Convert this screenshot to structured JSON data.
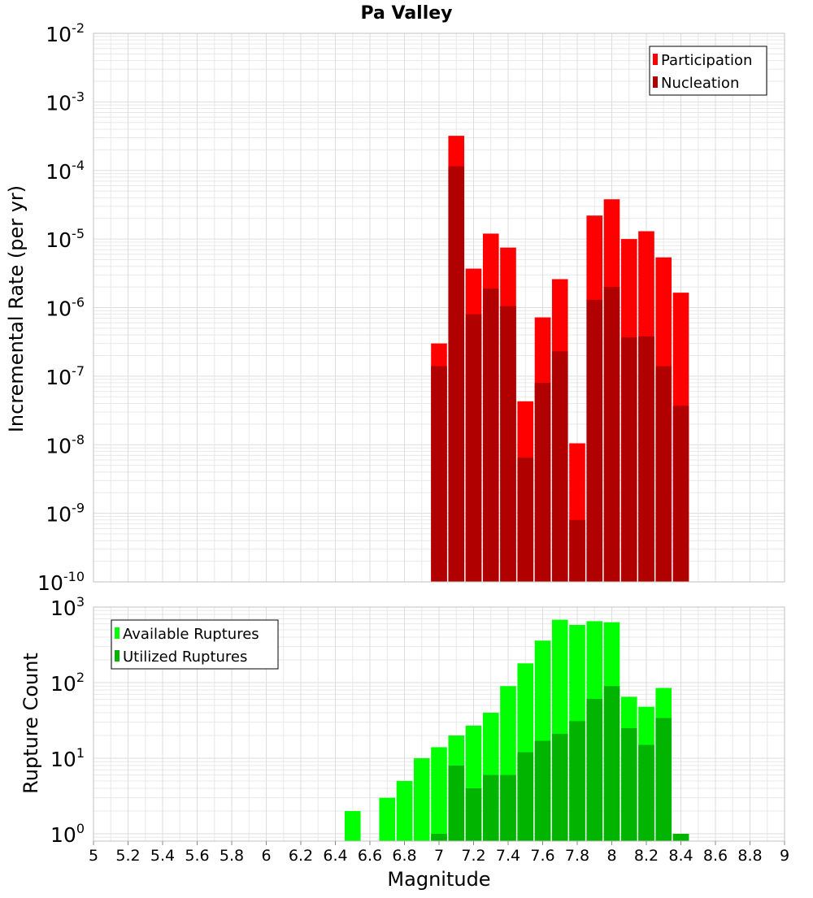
{
  "title": "Pa Valley",
  "colors": {
    "participation": "#ff0000",
    "nucleation": "#b00000",
    "available": "#00ff00",
    "utilized": "#00b400",
    "grid": "#e8e8e8",
    "frame": "#c0c0c0"
  },
  "chart_data": [
    {
      "type": "bar",
      "panel": "top",
      "ylabel": "Incremental Rate (per yr)",
      "yscale": "log",
      "ylim": [
        1e-10,
        0.01
      ],
      "ytick_exponents": [
        -2,
        -3,
        -4,
        -5,
        -6,
        -7,
        -8,
        -9,
        -10
      ],
      "legend_position": "top-right",
      "x": [
        7.0,
        7.1,
        7.2,
        7.3,
        7.4,
        7.5,
        7.6,
        7.7,
        7.8,
        7.9,
        8.0,
        8.1,
        8.2,
        8.3,
        8.4
      ],
      "series": [
        {
          "name": "Participation",
          "values": [
            3e-07,
            0.00032,
            3.7e-06,
            1.2e-05,
            7.5e-06,
            4.3e-08,
            7.2e-07,
            2.6e-06,
            1.05e-08,
            2.2e-05,
            3.8e-05,
            1e-05,
            1.3e-05,
            5.4e-06,
            1.65e-06
          ]
        },
        {
          "name": "Nucleation",
          "values": [
            1.4e-07,
            0.000115,
            8e-07,
            1.9e-06,
            1.05e-06,
            6.5e-09,
            8e-08,
            2.3e-07,
            8e-10,
            1.3e-06,
            2e-06,
            3.7e-07,
            3.8e-07,
            1.4e-07,
            3.7e-08
          ]
        }
      ]
    },
    {
      "type": "bar",
      "panel": "bottom",
      "ylabel": "Rupture Count",
      "xlabel": "Magnitude",
      "yscale": "log",
      "ylim": [
        0.8,
        1000
      ],
      "xlim": [
        5,
        9
      ],
      "ytick_exponents": [
        3,
        2,
        1,
        0
      ],
      "xticks": [
        "5",
        "5.2",
        "5.4",
        "5.6",
        "5.8",
        "6",
        "6.2",
        "6.4",
        "6.6",
        "6.8",
        "7",
        "7.2",
        "7.4",
        "7.6",
        "7.8",
        "8",
        "8.2",
        "8.4",
        "8.6",
        "8.8",
        "9"
      ],
      "legend_position": "top-left",
      "x": [
        6.5,
        6.7,
        6.8,
        6.9,
        7.0,
        7.1,
        7.2,
        7.3,
        7.4,
        7.5,
        7.6,
        7.7,
        7.8,
        7.9,
        8.0,
        8.1,
        8.2,
        8.3,
        8.4
      ],
      "series": [
        {
          "name": "Available Ruptures",
          "values": [
            2,
            3,
            5,
            10,
            14,
            20,
            27,
            40,
            90,
            180,
            360,
            680,
            580,
            650,
            630,
            65,
            48,
            85,
            1
          ]
        },
        {
          "name": "Utilized Ruptures",
          "values": [
            0,
            0,
            0,
            0,
            1,
            8,
            4,
            6,
            6,
            12,
            17,
            21,
            31,
            61,
            90,
            25,
            15,
            34,
            1
          ]
        }
      ]
    }
  ]
}
